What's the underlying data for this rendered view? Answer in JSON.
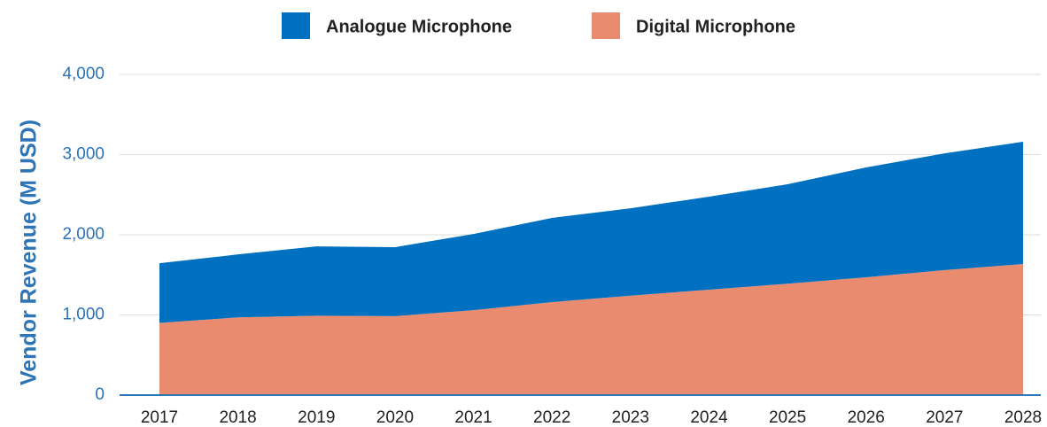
{
  "chart_data": {
    "type": "stacked_area",
    "y_label": "Vendor Revenue (M USD)",
    "categories": [
      "2017",
      "2018",
      "2019",
      "2020",
      "2021",
      "2022",
      "2023",
      "2024",
      "2025",
      "2026",
      "2027",
      "2028"
    ],
    "series": [
      {
        "name": "Analogue Microphone",
        "color": "#0070c0",
        "values": [
          745,
          785,
          865,
          860,
          950,
          1050,
          1090,
          1160,
          1240,
          1370,
          1455,
          1525
        ]
      },
      {
        "name": "Digital Microphone",
        "color": "#e98b6f",
        "values": [
          900,
          970,
          990,
          985,
          1060,
          1160,
          1240,
          1315,
          1390,
          1470,
          1560,
          1635
        ]
      }
    ],
    "ylim": [
      0,
      4000
    ],
    "yticks": [
      0,
      {
        "value": 1000,
        "label": "1,000"
      },
      {
        "value": 2000,
        "label": "2,000"
      },
      {
        "value": 3000,
        "label": "3,000"
      },
      {
        "value": 4000,
        "label": "4,000"
      }
    ],
    "grid": true,
    "legend": "top"
  }
}
